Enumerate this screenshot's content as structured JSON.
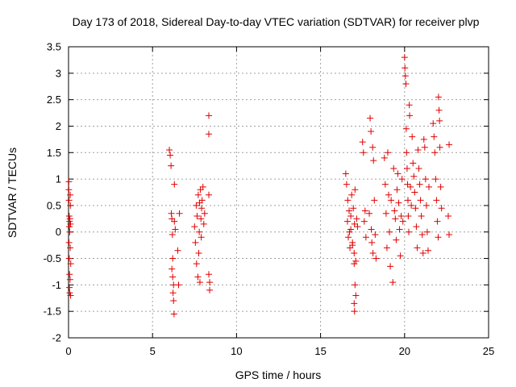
{
  "chart_data": {
    "type": "scatter",
    "title": "Day 173 of 2018, Sidereal Day-to-day VTEC variation (SDTVAR) for receiver plvp",
    "xlabel": "GPS time / hours",
    "ylabel": "SDTVAR / TECUs",
    "xlim": [
      0,
      25
    ],
    "ylim": [
      -2,
      3.5
    ],
    "grid": true,
    "marker": "+",
    "color": "#e00000",
    "x_ticks": [
      0,
      5,
      10,
      15,
      20,
      25
    ],
    "x_tick_labels": [
      "0",
      "5",
      "10",
      "15",
      "20",
      "25"
    ],
    "y_ticks": [
      -2,
      -1.5,
      -1,
      -0.5,
      0,
      0.5,
      1,
      1.5,
      2,
      2.5,
      3,
      3.5
    ],
    "y_tick_labels": [
      "-2",
      "-1.5",
      "-1",
      "-0.5",
      "0",
      "0.5",
      "1",
      "1.5",
      "2",
      "2.5",
      "3",
      "3.5"
    ],
    "series": [
      {
        "name": "SDTVAR",
        "x": [
          0.02,
          0.02,
          0.03,
          0.03,
          0.04,
          0.04,
          0.05,
          0.05,
          0.06,
          0.06,
          0.07,
          0.07,
          0.08,
          0.09,
          0.1,
          0.1,
          0.11,
          0.12,
          0.12,
          0.13,
          6.0,
          6.05,
          6.1,
          6.12,
          6.15,
          6.18,
          6.2,
          6.22,
          6.25,
          6.28,
          6.3,
          6.15,
          6.2,
          6.25,
          6.3,
          6.35,
          6.5,
          6.55,
          6.6,
          7.5,
          7.55,
          7.6,
          7.62,
          7.65,
          7.7,
          7.72,
          7.75,
          7.78,
          7.8,
          7.82,
          7.85,
          7.88,
          7.9,
          7.92,
          7.95,
          8.0,
          8.05,
          8.1,
          8.35,
          8.35,
          8.35,
          8.35,
          8.4,
          8.4,
          16.5,
          16.55,
          16.6,
          16.62,
          16.65,
          16.7,
          16.72,
          16.75,
          16.8,
          16.85,
          16.9,
          16.95,
          17.0,
          17.02,
          17.05,
          17.1,
          17.15,
          17.0,
          17.02,
          17.05,
          17.1,
          17.2,
          16.8,
          16.9,
          17.0,
          17.5,
          17.55,
          17.6,
          17.65,
          17.7,
          17.9,
          17.95,
          18.0,
          18.02,
          18.05,
          18.1,
          18.12,
          18.15,
          18.2,
          18.25,
          18.3,
          18.8,
          18.85,
          18.9,
          18.95,
          19.0,
          19.05,
          19.1,
          19.15,
          19.2,
          19.3,
          19.35,
          19.4,
          19.45,
          19.5,
          19.55,
          19.6,
          19.65,
          19.7,
          19.75,
          19.8,
          19.85,
          19.9,
          20.0,
          20.02,
          20.05,
          20.08,
          20.1,
          20.12,
          20.15,
          20.18,
          20.2,
          20.22,
          20.25,
          20.28,
          20.3,
          20.35,
          20.4,
          20.45,
          20.5,
          20.55,
          20.6,
          20.65,
          20.7,
          20.75,
          20.8,
          20.85,
          20.9,
          20.95,
          21.0,
          21.05,
          21.1,
          21.15,
          21.2,
          21.25,
          21.3,
          21.35,
          21.4,
          21.45,
          21.7,
          21.75,
          21.8,
          21.85,
          21.9,
          21.95,
          22.0,
          22.02,
          22.05,
          22.08,
          22.1,
          22.15,
          22.2,
          22.6,
          22.65,
          22.65
        ],
        "y": [
          0.95,
          0.8,
          0.6,
          -0.2,
          0.3,
          -0.5,
          0.1,
          -1.05,
          0.2,
          -0.8,
          0.0,
          -1.15,
          0.25,
          -0.9,
          0.7,
          -0.3,
          0.5,
          -1.2,
          0.15,
          -0.6,
          1.55,
          1.45,
          1.25,
          0.35,
          0.25,
          -0.05,
          -0.5,
          -1.15,
          -1.3,
          -1.55,
          0.2,
          -0.7,
          -0.85,
          -1.0,
          0.9,
          0.05,
          -0.35,
          -1.0,
          0.35,
          0.1,
          -0.2,
          0.5,
          -0.6,
          0.3,
          -0.85,
          0.7,
          -0.4,
          0.0,
          0.55,
          -0.95,
          0.8,
          0.25,
          -0.1,
          0.45,
          0.6,
          0.85,
          0.15,
          0.35,
          2.2,
          1.85,
          0.7,
          -0.8,
          -0.95,
          -1.1,
          1.1,
          0.9,
          0.2,
          0.6,
          -0.1,
          0.4,
          0.0,
          -0.3,
          0.3,
          0.7,
          -0.2,
          0.45,
          -0.4,
          0.15,
          0.8,
          -0.55,
          0.25,
          -1.35,
          -1.5,
          -1.0,
          -1.2,
          0.1,
          0.05,
          -0.25,
          -0.6,
          1.7,
          1.5,
          0.2,
          0.4,
          -0.1,
          0.35,
          2.15,
          1.9,
          0.05,
          -0.2,
          1.6,
          -0.4,
          1.35,
          0.6,
          -0.05,
          -0.5,
          1.4,
          0.9,
          0.35,
          -0.3,
          1.5,
          0.7,
          0.0,
          -0.65,
          0.6,
          -0.95,
          1.2,
          0.4,
          0.25,
          -0.15,
          0.8,
          1.1,
          0.55,
          0.05,
          -0.45,
          0.3,
          1.0,
          0.2,
          3.3,
          3.1,
          2.95,
          2.8,
          1.95,
          1.5,
          1.2,
          0.9,
          0.6,
          0.3,
          0.0,
          2.4,
          2.2,
          0.85,
          0.5,
          1.8,
          1.3,
          1.05,
          0.75,
          0.45,
          0.1,
          -0.3,
          1.55,
          1.2,
          0.9,
          0.6,
          0.3,
          -0.05,
          -0.4,
          1.75,
          1.6,
          1.0,
          0.5,
          0.0,
          -0.35,
          0.85,
          2.05,
          1.8,
          1.5,
          1.0,
          0.6,
          0.2,
          -0.1,
          2.55,
          2.3,
          2.1,
          1.6,
          0.85,
          0.45,
          0.3,
          -0.05,
          1.65
        ]
      }
    ]
  }
}
